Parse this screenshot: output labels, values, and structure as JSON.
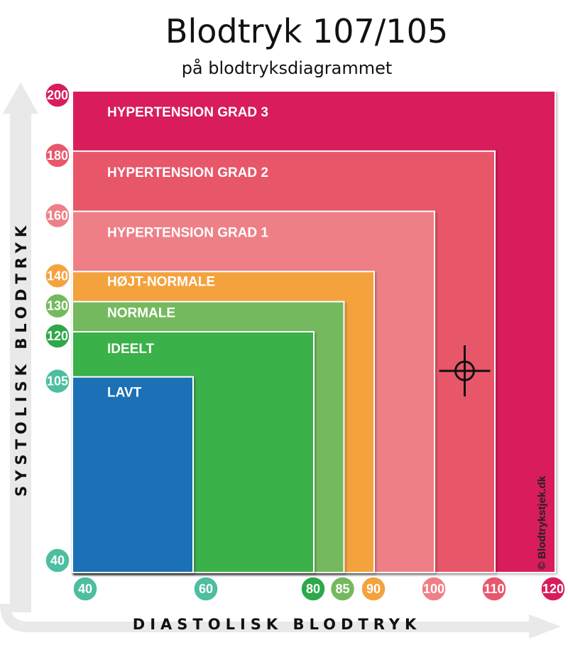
{
  "chart_data": {
    "type": "area",
    "title": "Blodtryk 107/105",
    "subtitle": "på blodtryksdiagrammet",
    "xlabel": "DIASTOLISK BLODTRYK",
    "ylabel": "SYSTOLISK BLODTRYK",
    "xlim": [
      40,
      120
    ],
    "ylim": [
      40,
      200
    ],
    "x_ticks": [
      {
        "value": 40,
        "label": "40",
        "color": "#4dbea0"
      },
      {
        "value": 60,
        "label": "60",
        "color": "#4dbea0"
      },
      {
        "value": 80,
        "label": "80",
        "color": "#2ea84a"
      },
      {
        "value": 85,
        "label": "85",
        "color": "#74b95e"
      },
      {
        "value": 90,
        "label": "90",
        "color": "#f4a23c"
      },
      {
        "value": 100,
        "label": "100",
        "color": "#ef7f86"
      },
      {
        "value": 110,
        "label": "110",
        "color": "#e8576b"
      },
      {
        "value": 120,
        "label": "120",
        "color": "#d81d5c"
      }
    ],
    "y_ticks": [
      {
        "value": 200,
        "label": "200",
        "color": "#d81d5c"
      },
      {
        "value": 180,
        "label": "180",
        "color": "#e8576b"
      },
      {
        "value": 160,
        "label": "160",
        "color": "#ef7f86"
      },
      {
        "value": 140,
        "label": "140",
        "color": "#f4a23c"
      },
      {
        "value": 130,
        "label": "130",
        "color": "#74b95e"
      },
      {
        "value": 120,
        "label": "120",
        "color": "#2ea84a"
      },
      {
        "value": 105,
        "label": "105",
        "color": "#4dbea0"
      },
      {
        "value": 40,
        "label": "40",
        "color": "#4dbea0"
      }
    ],
    "zones": [
      {
        "label": "HYPERTENSION GRAD 3",
        "diastolic_max": 120,
        "systolic_max": 200,
        "color": "#d81d5c"
      },
      {
        "label": "HYPERTENSION GRAD 2",
        "diastolic_max": 110,
        "systolic_max": 180,
        "color": "#e8576b"
      },
      {
        "label": "HYPERTENSION GRAD 1",
        "diastolic_max": 100,
        "systolic_max": 160,
        "color": "#ef7f86"
      },
      {
        "label": "HØJT-NORMALE",
        "diastolic_max": 90,
        "systolic_max": 140,
        "color": "#f4a23c"
      },
      {
        "label": "NORMALE",
        "diastolic_max": 85,
        "systolic_max": 130,
        "color": "#74b95e"
      },
      {
        "label": "IDEELT",
        "diastolic_max": 80,
        "systolic_max": 120,
        "color": "#3bb14a"
      },
      {
        "label": "LAVT",
        "diastolic_max": 60,
        "systolic_max": 105,
        "color": "#1f6fb5"
      }
    ],
    "marker": {
      "systolic": 107,
      "diastolic": 105
    },
    "copyright": "© Blodtrykstjek.dk",
    "grid": false,
    "legend": "none"
  }
}
